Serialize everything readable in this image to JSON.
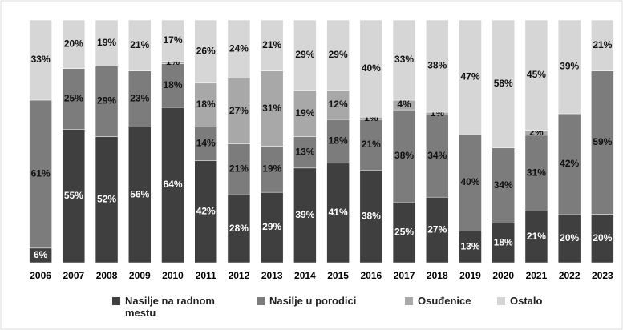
{
  "chart_data": {
    "type": "bar",
    "stacked": "percent",
    "categories": [
      "2006",
      "2007",
      "2008",
      "2009",
      "2010",
      "2011",
      "2012",
      "2013",
      "2014",
      "2015",
      "2016",
      "2017",
      "2018",
      "2019",
      "2020",
      "2021",
      "2022",
      "2023"
    ],
    "series": [
      {
        "name": "Nasilje na radnom mestu",
        "color": "#3f3f3f",
        "values": [
          6,
          55,
          52,
          56,
          64,
          42,
          28,
          29,
          39,
          41,
          38,
          25,
          27,
          13,
          18,
          21,
          20,
          20
        ],
        "value_labels": [
          "6%",
          "55%",
          "52%",
          "56%",
          "64%",
          "42%",
          "28%",
          "29%",
          "39%",
          "41%",
          "38%",
          "25%",
          "27%",
          "13%",
          "18%",
          "21%",
          "20%",
          "20%"
        ]
      },
      {
        "name": "Nasilje u porodici",
        "color": "#7c7c7c",
        "values": [
          61,
          25,
          29,
          23,
          18,
          14,
          21,
          19,
          13,
          18,
          21,
          38,
          34,
          40,
          34,
          31,
          42,
          59
        ],
        "value_labels": [
          "61%",
          "25%",
          "29%",
          "23%",
          "18%",
          "14%",
          "21%",
          "19%",
          "13%",
          "18%",
          "21%",
          "38%",
          "34%",
          "40%",
          "34%",
          "31%",
          "42%",
          "59%"
        ]
      },
      {
        "name": "Osuđenice",
        "color": "#a8a8a8",
        "values": [
          null,
          null,
          null,
          null,
          1,
          18,
          27,
          31,
          19,
          12,
          1,
          4,
          1,
          null,
          null,
          2,
          null,
          null
        ],
        "value_labels": [
          null,
          null,
          null,
          null,
          "1%",
          "18%",
          "27%",
          "31%",
          "19%",
          "12%",
          "1%",
          "4%",
          "1%",
          null,
          null,
          "2%",
          null,
          null
        ]
      },
      {
        "name": "Ostalo",
        "color": "#d6d6d6",
        "values": [
          33,
          20,
          19,
          21,
          17,
          26,
          24,
          21,
          29,
          29,
          40,
          33,
          38,
          47,
          58,
          45,
          39,
          21
        ],
        "value_labels": [
          "33%",
          "20%",
          "19%",
          "21%",
          "17%",
          "26%",
          "24%",
          "21%",
          "29%",
          "29%",
          "40%",
          "33%",
          "38%",
          "47%",
          "58%",
          "45%",
          "39%",
          "21%"
        ]
      }
    ]
  }
}
